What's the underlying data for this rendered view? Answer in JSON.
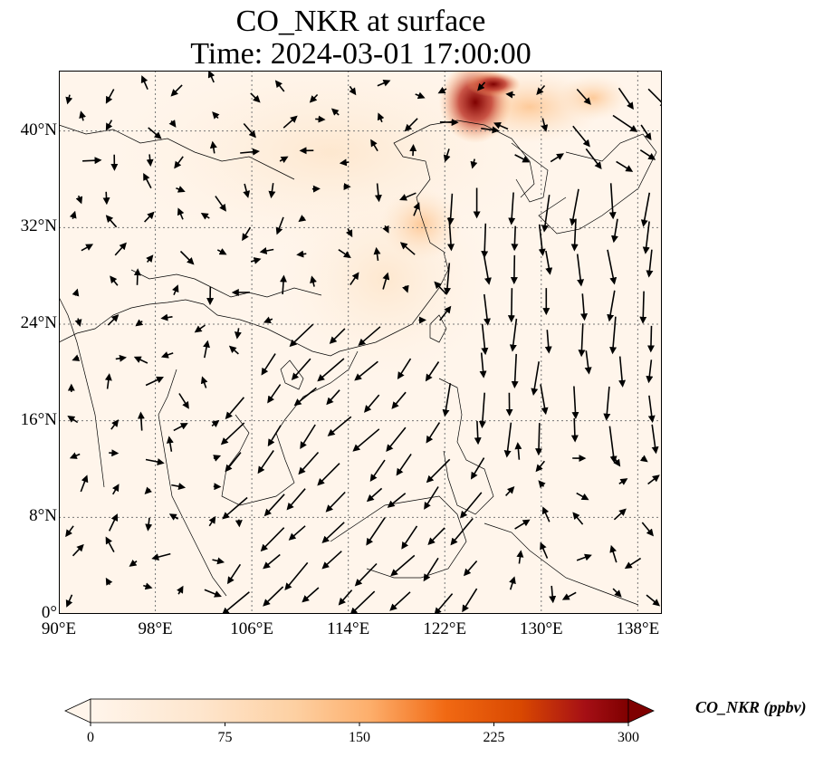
{
  "title": {
    "line1": "CO_NKR at surface",
    "line2": "Time: 2024-03-01 17:00:00"
  },
  "map": {
    "lon_range": [
      90,
      140
    ],
    "lat_range": [
      0,
      45
    ],
    "lat_ticks": [
      {
        "value": 0,
        "label": "0°"
      },
      {
        "value": 8,
        "label": "8°N"
      },
      {
        "value": 16,
        "label": "16°N"
      },
      {
        "value": 24,
        "label": "24°N"
      },
      {
        "value": 32,
        "label": "32°N"
      },
      {
        "value": 40,
        "label": "40°N"
      }
    ],
    "lon_ticks": [
      {
        "value": 90,
        "label": "90°E"
      },
      {
        "value": 98,
        "label": "98°E"
      },
      {
        "value": 106,
        "label": "106°E"
      },
      {
        "value": 114,
        "label": "114°E"
      },
      {
        "value": 122,
        "label": "122°E"
      },
      {
        "value": 130,
        "label": "130°E"
      },
      {
        "value": 138,
        "label": "138°E"
      }
    ],
    "gridlines": true,
    "field": "CO_NKR concentration",
    "overlay": "wind vectors"
  },
  "colorbar": {
    "label": "CO_NKR (ppbv)",
    "min": 0,
    "max": 300,
    "extend": "both",
    "ticks": [
      "0",
      "75",
      "150",
      "225",
      "300"
    ],
    "colors": [
      "#fff5eb",
      "#fdd49e",
      "#fdae6b",
      "#f16913",
      "#d94801",
      "#a50f15",
      "#7f0000"
    ]
  }
}
